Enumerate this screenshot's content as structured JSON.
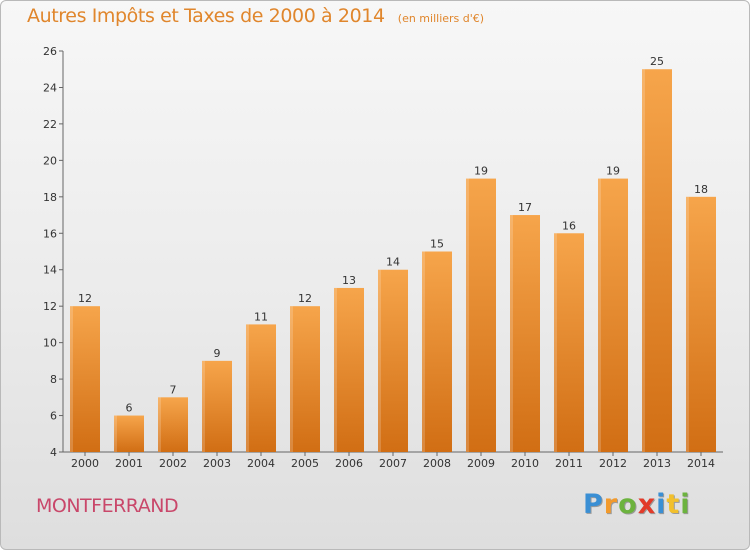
{
  "chart_data": {
    "type": "bar",
    "title": "Autres Impôts et Taxes de 2000 à 2014",
    "subtitle": "(en milliers d'€)",
    "categories": [
      "2000",
      "2001",
      "2002",
      "2003",
      "2004",
      "2005",
      "2006",
      "2007",
      "2008",
      "2009",
      "2010",
      "2011",
      "2012",
      "2013",
      "2014"
    ],
    "values": [
      12,
      6,
      7,
      9,
      11,
      12,
      13,
      14,
      15,
      19,
      17,
      16,
      19,
      25,
      18
    ],
    "ylim": [
      4,
      26
    ],
    "yticks": [
      4,
      6,
      8,
      10,
      12,
      14,
      16,
      18,
      20,
      22,
      24,
      26
    ],
    "grid": false,
    "colors": {
      "bar_light": "#f6a54b",
      "bar_dark": "#d16e14",
      "text": "#333333",
      "title": "#e0862c"
    }
  },
  "footer": {
    "commune": "MONTFERRAND",
    "logo_letters": [
      {
        "ch": "P",
        "color": "#3a8fd4"
      },
      {
        "ch": "r",
        "color": "#f29a2c"
      },
      {
        "ch": "o",
        "color": "#6cb33e"
      },
      {
        "ch": "x",
        "color": "#e23b2a"
      },
      {
        "ch": "i",
        "color": "#3a8fd4"
      },
      {
        "ch": "t",
        "color": "#f2c02c"
      },
      {
        "ch": "i",
        "color": "#6cb33e"
      }
    ]
  }
}
